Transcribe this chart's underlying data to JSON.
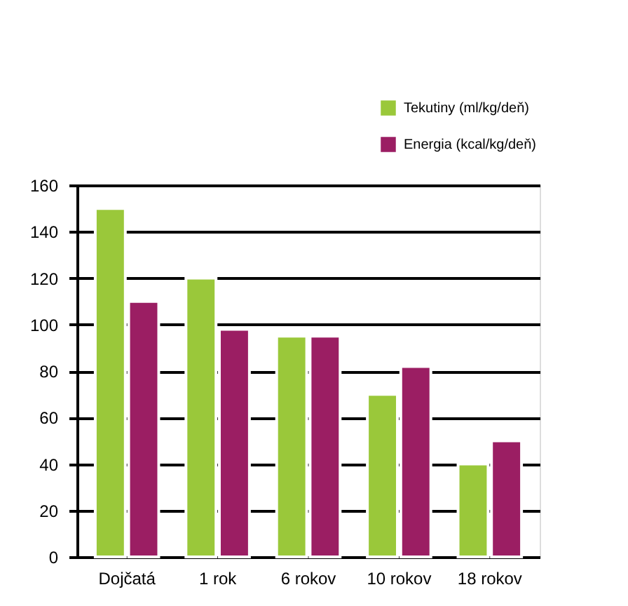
{
  "chart_data": {
    "type": "bar",
    "categories": [
      "Dojčatá",
      "1 rok",
      "6 rokov",
      "10 rokov",
      "18 rokov"
    ],
    "series": [
      {
        "name": "Tekutiny (ml/kg/deň)",
        "color": "#9ac83a",
        "values": [
          150,
          120,
          95,
          70,
          40
        ]
      },
      {
        "name": "Energia (kcal/kg/deň)",
        "color": "#9b1e63",
        "values": [
          110,
          98,
          95,
          82,
          50
        ]
      }
    ],
    "ylim": [
      0,
      160
    ],
    "yticks": [
      0,
      20,
      40,
      60,
      80,
      100,
      120,
      140,
      160
    ],
    "grid": "y",
    "legend": "top right"
  }
}
